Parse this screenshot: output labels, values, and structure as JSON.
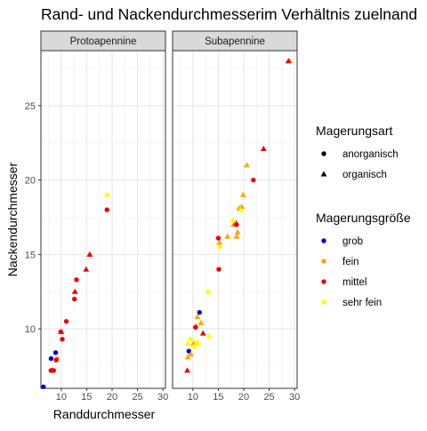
{
  "chart_data": {
    "type": "scatter",
    "title": "Rand- und Nackendurchmesserim Verhältnis zuelnand",
    "xlabel": "Randdurchmesser",
    "ylabel": "Nackendurchmesser",
    "xlim": [
      6,
      30.5
    ],
    "ylim": [
      6,
      28.7
    ],
    "x_ticks": [
      10,
      15,
      20,
      25,
      30
    ],
    "y_ticks": [
      10,
      15,
      20,
      25
    ],
    "grid": true,
    "legend_position": "right",
    "facets": [
      {
        "label": "Protoapennine",
        "points": [
          {
            "x": 6.5,
            "y": 6.1,
            "shape": "circle",
            "size": "grob"
          },
          {
            "x": 8.0,
            "y": 8.0,
            "shape": "circle",
            "size": "grob"
          },
          {
            "x": 8.9,
            "y": 8.4,
            "shape": "circle",
            "size": "grob"
          },
          {
            "x": 9.2,
            "y": 8.0,
            "shape": "circle",
            "size": "fein"
          },
          {
            "x": 8.0,
            "y": 7.2,
            "shape": "circle",
            "size": "mittel"
          },
          {
            "x": 8.5,
            "y": 7.2,
            "shape": "circle",
            "size": "mittel"
          },
          {
            "x": 9.0,
            "y": 7.9,
            "shape": "circle",
            "size": "mittel"
          },
          {
            "x": 9.9,
            "y": 9.8,
            "shape": "circle",
            "size": "mittel"
          },
          {
            "x": 10.2,
            "y": 9.3,
            "shape": "circle",
            "size": "mittel"
          },
          {
            "x": 11.0,
            "y": 10.5,
            "shape": "circle",
            "size": "mittel"
          },
          {
            "x": 12.6,
            "y": 12.0,
            "shape": "circle",
            "size": "mittel"
          },
          {
            "x": 13.0,
            "y": 13.3,
            "shape": "circle",
            "size": "mittel"
          },
          {
            "x": 19.0,
            "y": 18.0,
            "shape": "circle",
            "size": "mittel"
          },
          {
            "x": 8.2,
            "y": 7.2,
            "shape": "triangle",
            "size": "mittel"
          },
          {
            "x": 10.0,
            "y": 9.8,
            "shape": "triangle",
            "size": "mittel"
          },
          {
            "x": 12.7,
            "y": 12.5,
            "shape": "triangle",
            "size": "mittel"
          },
          {
            "x": 14.9,
            "y": 14.0,
            "shape": "triangle",
            "size": "mittel"
          },
          {
            "x": 15.6,
            "y": 15.0,
            "shape": "triangle",
            "size": "mittel"
          },
          {
            "x": 19.0,
            "y": 19.0,
            "shape": "circle",
            "size": "sehr fein"
          }
        ]
      },
      {
        "label": "Subapennine",
        "points": [
          {
            "x": 9.2,
            "y": 8.5,
            "shape": "circle",
            "size": "grob"
          },
          {
            "x": 11.3,
            "y": 11.1,
            "shape": "circle",
            "size": "grob"
          },
          {
            "x": 9.0,
            "y": 8.1,
            "shape": "triangle",
            "size": "fein"
          },
          {
            "x": 9.6,
            "y": 8.3,
            "shape": "triangle",
            "size": "fein"
          },
          {
            "x": 10.1,
            "y": 9.0,
            "shape": "triangle",
            "size": "fein"
          },
          {
            "x": 10.6,
            "y": 10.2,
            "shape": "triangle",
            "size": "fein"
          },
          {
            "x": 10.9,
            "y": 10.8,
            "shape": "triangle",
            "size": "fein"
          },
          {
            "x": 11.6,
            "y": 10.4,
            "shape": "triangle",
            "size": "fein"
          },
          {
            "x": 15.2,
            "y": 15.8,
            "shape": "triangle",
            "size": "fein"
          },
          {
            "x": 16.8,
            "y": 16.2,
            "shape": "triangle",
            "size": "fein"
          },
          {
            "x": 18.0,
            "y": 17.0,
            "shape": "triangle",
            "size": "fein"
          },
          {
            "x": 18.6,
            "y": 16.2,
            "shape": "triangle",
            "size": "fein"
          },
          {
            "x": 18.8,
            "y": 16.5,
            "shape": "triangle",
            "size": "fein"
          },
          {
            "x": 19.1,
            "y": 18.1,
            "shape": "triangle",
            "size": "fein"
          },
          {
            "x": 19.6,
            "y": 18.2,
            "shape": "triangle",
            "size": "fein"
          },
          {
            "x": 19.9,
            "y": 19.0,
            "shape": "triangle",
            "size": "fein"
          },
          {
            "x": 20.6,
            "y": 21.0,
            "shape": "triangle",
            "size": "fein"
          },
          {
            "x": 29.0,
            "y": 28.0,
            "shape": "triangle",
            "size": "fein"
          },
          {
            "x": 10.5,
            "y": 10.1,
            "shape": "circle",
            "size": "mittel"
          },
          {
            "x": 15.0,
            "y": 16.1,
            "shape": "circle",
            "size": "mittel"
          },
          {
            "x": 15.1,
            "y": 14.0,
            "shape": "circle",
            "size": "mittel"
          },
          {
            "x": 18.6,
            "y": 17.0,
            "shape": "circle",
            "size": "mittel"
          },
          {
            "x": 21.9,
            "y": 20.0,
            "shape": "circle",
            "size": "mittel"
          },
          {
            "x": 8.9,
            "y": 7.2,
            "shape": "triangle",
            "size": "mittel"
          },
          {
            "x": 12.0,
            "y": 9.7,
            "shape": "triangle",
            "size": "mittel"
          },
          {
            "x": 18.5,
            "y": 17.1,
            "shape": "triangle",
            "size": "mittel"
          },
          {
            "x": 23.9,
            "y": 22.1,
            "shape": "triangle",
            "size": "mittel"
          },
          {
            "x": 28.8,
            "y": 28.0,
            "shape": "triangle",
            "size": "mittel"
          },
          {
            "x": 9.5,
            "y": 9.3,
            "shape": "circle",
            "size": "sehr fein"
          },
          {
            "x": 10.3,
            "y": 8.8,
            "shape": "circle",
            "size": "sehr fein"
          },
          {
            "x": 10.8,
            "y": 9.1,
            "shape": "circle",
            "size": "sehr fein"
          },
          {
            "x": 13.0,
            "y": 12.5,
            "shape": "circle",
            "size": "sehr fein"
          },
          {
            "x": 15.3,
            "y": 15.5,
            "shape": "circle",
            "size": "sehr fein"
          },
          {
            "x": 9.0,
            "y": 9.0,
            "shape": "triangle",
            "size": "sehr fein"
          },
          {
            "x": 11.0,
            "y": 9.0,
            "shape": "triangle",
            "size": "sehr fein"
          },
          {
            "x": 13.2,
            "y": 9.5,
            "shape": "triangle",
            "size": "sehr fein"
          },
          {
            "x": 17.9,
            "y": 17.3,
            "shape": "triangle",
            "size": "sehr fein"
          },
          {
            "x": 19.4,
            "y": 18.0,
            "shape": "triangle",
            "size": "sehr fein"
          }
        ]
      }
    ],
    "legend": {
      "shape_title": "Magerungsart",
      "shape_items": [
        {
          "label": "anorganisch",
          "shape": "circle"
        },
        {
          "label": "organisch",
          "shape": "triangle"
        }
      ],
      "color_title": "Magerungsgröße",
      "color_items": [
        {
          "label": "grob",
          "key": "grob",
          "color": "#0000CD"
        },
        {
          "label": "fein",
          "key": "fein",
          "color": "#FFA500"
        },
        {
          "label": "mittel",
          "key": "mittel",
          "color": "#EE0000"
        },
        {
          "label": "sehr fein",
          "key": "sehr fein",
          "color": "#FFFF00"
        }
      ]
    }
  }
}
